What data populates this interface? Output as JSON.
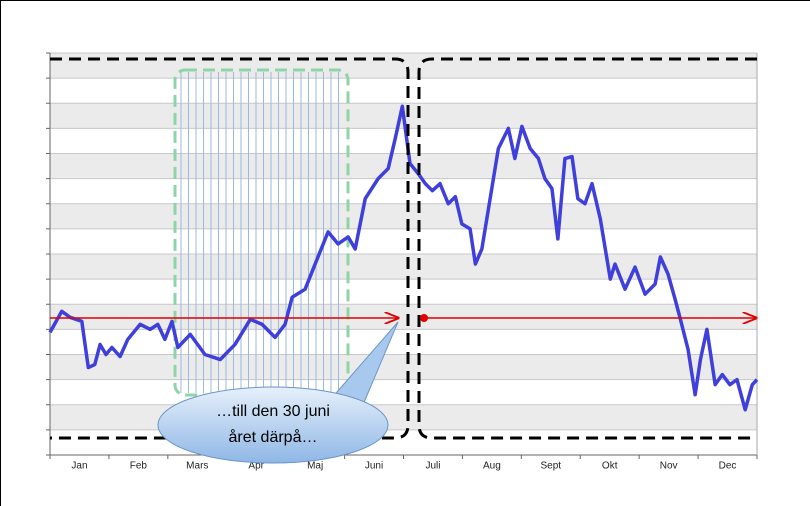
{
  "chart_data": {
    "type": "line",
    "categories": [
      "Jan",
      "Feb",
      "Mars",
      "Apr",
      "Maj",
      "Juni",
      "Juli",
      "Aug",
      "Sept",
      "Okt",
      "Nov",
      "Dec"
    ],
    "xlim": [
      0,
      12
    ],
    "ylim": [
      0,
      16
    ],
    "yticks": [
      0,
      1,
      2,
      3,
      4,
      5,
      6,
      7,
      8,
      9,
      10,
      11,
      12,
      13,
      14,
      15,
      16
    ],
    "grid": true,
    "x": [
      0,
      0.2,
      0.34,
      0.54,
      0.65,
      0.76,
      0.85,
      0.95,
      1.05,
      1.19,
      1.32,
      1.53,
      1.7,
      1.83,
      1.95,
      2.07,
      2.17,
      2.38,
      2.63,
      2.89,
      3.14,
      3.4,
      3.6,
      3.82,
      3.99,
      4.11,
      4.33,
      4.5,
      4.72,
      4.89,
      5.06,
      5.18,
      5.35,
      5.57,
      5.74,
      5.86,
      5.98,
      6.11,
      6.25,
      6.37,
      6.49,
      6.62,
      6.76,
      6.88,
      6.99,
      7.13,
      7.22,
      7.33,
      7.47,
      7.61,
      7.78,
      7.89,
      8.01,
      8.15,
      8.29,
      8.4,
      8.52,
      8.62,
      8.74,
      8.86,
      8.96,
      9.08,
      9.2,
      9.34,
      9.51,
      9.59,
      9.76,
      9.93,
      10.1,
      10.27,
      10.36,
      10.49,
      10.61,
      10.7,
      10.83,
      10.95,
      11.04,
      11.15,
      11.29,
      11.41,
      11.54,
      11.66,
      11.8,
      11.92,
      12
    ],
    "series": [
      {
        "color": "#3f3fdc",
        "values": [
          4.88,
          5.72,
          5.48,
          5.32,
          3.48,
          3.6,
          4.4,
          4.0,
          4.28,
          3.92,
          4.6,
          5.2,
          5.0,
          5.2,
          4.6,
          5.32,
          4.28,
          4.8,
          4.0,
          3.8,
          4.4,
          5.4,
          5.2,
          4.68,
          5.2,
          6.28,
          6.6,
          7.6,
          8.88,
          8.4,
          8.68,
          8.2,
          10.2,
          11.0,
          11.4,
          12.6,
          13.88,
          11.6,
          11.2,
          10.8,
          10.52,
          10.8,
          10.0,
          10.28,
          9.2,
          9.0,
          7.6,
          8.2,
          10.2,
          12.2,
          13.0,
          11.8,
          13.08,
          12.2,
          11.8,
          11.0,
          10.6,
          8.6,
          11.8,
          11.88,
          10.2,
          10.0,
          10.8,
          9.4,
          7.0,
          7.6,
          6.6,
          7.48,
          6.4,
          6.8,
          7.88,
          7.2,
          6.2,
          5.4,
          4.2,
          2.4,
          3.8,
          5.0,
          2.8,
          3.2,
          2.8,
          3.0,
          1.8,
          2.8,
          3.0
        ]
      }
    ]
  },
  "callout": {
    "lines": [
      "…till den 30 juni",
      "året därpå…"
    ]
  }
}
